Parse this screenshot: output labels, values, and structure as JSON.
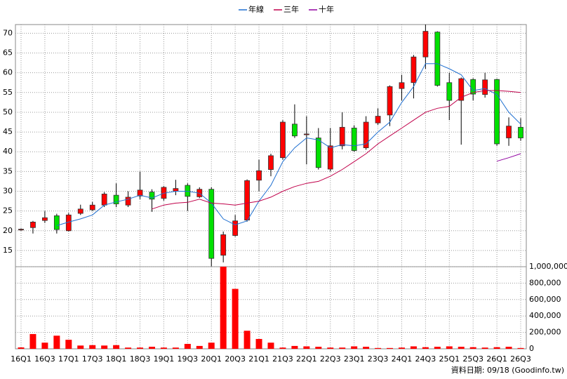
{
  "chart_data": {
    "type": "candlestick",
    "categories": [
      "16Q1",
      null,
      "16Q3",
      null,
      "17Q1",
      null,
      "17Q3",
      null,
      "18Q1",
      null,
      "18Q3",
      null,
      "19Q1",
      null,
      "19Q3",
      null,
      "20Q1",
      null,
      "20Q3",
      null,
      "21Q1",
      null,
      "21Q3",
      null,
      "22Q1",
      null,
      "22Q3",
      null,
      "23Q1",
      null,
      "23Q3",
      null,
      "24Q1",
      null,
      "24Q3",
      null,
      "25Q1",
      null,
      "25Q3",
      null,
      "26Q1",
      null,
      "26Q3"
    ],
    "open": [
      20.2,
      20.8,
      22.6,
      23.8,
      20.0,
      24.4,
      25.3,
      26.5,
      29.0,
      26.5,
      28.8,
      29.8,
      28.2,
      30.0,
      31.5,
      28.6,
      30.5,
      13.8,
      18.8,
      22.7,
      32.8,
      35.5,
      38.5,
      47.0,
      44.3,
      43.5,
      35.6,
      41.5,
      46.0,
      41.0,
      47.3,
      49.3,
      56.0,
      57.5,
      64.0,
      70.3,
      57.5,
      53.0,
      58.3,
      54.5,
      58.3,
      43.5,
      46.2
    ],
    "high": [
      20.6,
      22.5,
      25.0,
      24.3,
      24.5,
      26.6,
      27.3,
      29.8,
      32.0,
      30.0,
      35.0,
      30.5,
      31.3,
      32.9,
      32.0,
      31.0,
      31.0,
      19.8,
      24.0,
      33.0,
      38.0,
      39.5,
      48.0,
      52.0,
      49.0,
      46.0,
      46.0,
      50.0,
      46.7,
      49.0,
      51.0,
      56.8,
      59.5,
      64.5,
      72.2,
      70.5,
      60.0,
      58.8,
      58.6,
      60.0,
      58.5,
      48.7,
      48.5
    ],
    "low": [
      20.0,
      19.3,
      22.0,
      19.3,
      19.8,
      24.0,
      25.0,
      26.0,
      26.0,
      26.0,
      28.0,
      24.8,
      27.6,
      29.0,
      25.0,
      28.3,
      11.0,
      12.0,
      18.5,
      22.3,
      30.0,
      33.8,
      38.0,
      43.5,
      36.8,
      35.5,
      35.0,
      40.6,
      40.0,
      40.5,
      46.8,
      46.5,
      53.0,
      53.5,
      61.0,
      56.5,
      48.0,
      41.8,
      53.0,
      53.7,
      41.5,
      41.5,
      42.8
    ],
    "close": [
      20.4,
      22.2,
      23.3,
      20.3,
      24.0,
      25.5,
      26.5,
      29.3,
      26.8,
      28.5,
      30.3,
      28.0,
      31.0,
      30.7,
      28.7,
      30.5,
      13.0,
      19.0,
      22.5,
      32.7,
      35.2,
      39.0,
      47.5,
      44.0,
      44.5,
      36.0,
      41.5,
      46.2,
      40.3,
      47.5,
      49.0,
      56.5,
      57.5,
      64.0,
      70.5,
      56.8,
      53.0,
      58.5,
      54.6,
      58.2,
      42.0,
      46.5,
      43.5
    ],
    "up_color": "#ff0000",
    "down_color": "#00e000",
    "series": [
      {
        "name": "年線",
        "color": "#1f6fd0",
        "values": [
          null,
          null,
          null,
          21.3,
          22.2,
          23.0,
          24.0,
          26.5,
          27.3,
          28.0,
          29.0,
          28.3,
          29.5,
          30.0,
          30.0,
          29.5,
          27.0,
          23.0,
          21.5,
          22.5,
          27.5,
          31.5,
          37.5,
          41.0,
          43.5,
          43.0,
          41.0,
          41.8,
          41.5,
          42.0,
          45.0,
          47.5,
          52.5,
          56.5,
          62.3,
          62.3,
          61.0,
          59.5,
          55.5,
          56.0,
          54.5,
          50.0,
          47.0
        ]
      },
      {
        "name": "三年",
        "color": "#c0004a",
        "values": [
          null,
          null,
          null,
          null,
          null,
          null,
          null,
          null,
          null,
          null,
          null,
          25.5,
          26.5,
          27.0,
          27.2,
          28.0,
          27.0,
          26.8,
          26.5,
          27.0,
          27.5,
          28.5,
          30.0,
          31.2,
          32.0,
          32.5,
          33.8,
          35.5,
          37.5,
          39.5,
          42.0,
          44.0,
          46.0,
          48.0,
          50.0,
          51.0,
          51.5,
          53.8,
          55.0,
          55.5,
          55.5,
          55.3,
          55.0
        ]
      },
      {
        "name": "十年",
        "color": "#9000a0",
        "values": [
          null,
          null,
          null,
          null,
          null,
          null,
          null,
          null,
          null,
          null,
          null,
          null,
          null,
          null,
          null,
          null,
          null,
          null,
          null,
          null,
          null,
          null,
          null,
          null,
          null,
          null,
          null,
          null,
          null,
          null,
          null,
          null,
          null,
          null,
          null,
          null,
          null,
          null,
          null,
          null,
          37.6,
          38.5,
          39.5
        ]
      }
    ],
    "ylim": [
      10.9,
      72.2
    ],
    "yticks": [
      15,
      20,
      25,
      30,
      35,
      40,
      45,
      50,
      55,
      60,
      65,
      70
    ],
    "grid": true,
    "volume": {
      "type": "bar",
      "color": "#ff0000",
      "values": [
        17000,
        180000,
        75000,
        160000,
        110000,
        40000,
        45000,
        40000,
        45000,
        15000,
        15000,
        25000,
        15000,
        15000,
        60000,
        35000,
        75000,
        1000000,
        730000,
        220000,
        120000,
        75000,
        15000,
        35000,
        30000,
        25000,
        15000,
        15000,
        30000,
        25000,
        10000,
        10000,
        15000,
        30000,
        20000,
        25000,
        30000,
        25000,
        20000,
        15000,
        20000,
        25000,
        10000
      ],
      "ylim": [
        0,
        1000000
      ],
      "yticks": [
        0,
        {
          "value": 200000,
          "label": "200,000"
        },
        {
          "value": 400000,
          "label": "400,000"
        },
        {
          "value": 600000,
          "label": "600,000"
        },
        {
          "value": 800000,
          "label": "800,000"
        },
        {
          "value": 1000000,
          "label": "1,000,000"
        }
      ]
    },
    "source": "資料日期: 09/18 (Goodinfo.tw)"
  }
}
